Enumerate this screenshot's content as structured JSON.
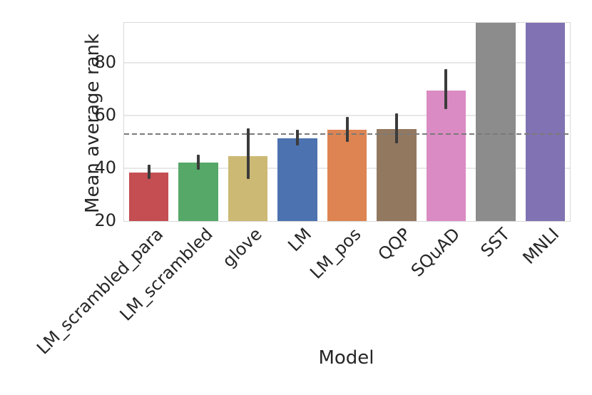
{
  "chart_data": {
    "type": "bar",
    "title": "",
    "xlabel": "Model",
    "ylabel": "Mean average rank",
    "categories": [
      "LM_scrambled_para",
      "LM_scrambled",
      "glove",
      "LM",
      "LM_pos",
      "QQP",
      "SQuAD",
      "SST",
      "MNLI"
    ],
    "values": [
      38.4,
      42.0,
      44.6,
      51.4,
      54.5,
      54.8,
      69.4,
      95,
      95
    ],
    "errors_low": [
      36.0,
      39.3,
      36.0,
      48.7,
      49.9,
      49.3,
      62.4,
      null,
      null
    ],
    "errors_high": [
      41.2,
      45.1,
      55.0,
      54.5,
      59.4,
      60.8,
      77.5,
      null,
      null
    ],
    "clipped_at_top": [
      false,
      false,
      false,
      false,
      false,
      false,
      false,
      true,
      true
    ],
    "colors": [
      "#c44e52",
      "#55a868",
      "#ccb974",
      "#4c72b0",
      "#dd8452",
      "#937860",
      "#da8bc3",
      "#8c8c8c",
      "#8172b3"
    ],
    "ylim": [
      20,
      95
    ],
    "yticks": [
      20,
      40,
      60,
      80
    ],
    "grid": "horizontal-light",
    "legend": "none",
    "reference_line": {
      "value": 53,
      "style": "dashed",
      "color": "#7a7a7a"
    },
    "error_bar_color": "#3b3b3b",
    "text_color": "#262626",
    "background_color": "#ffffff"
  }
}
